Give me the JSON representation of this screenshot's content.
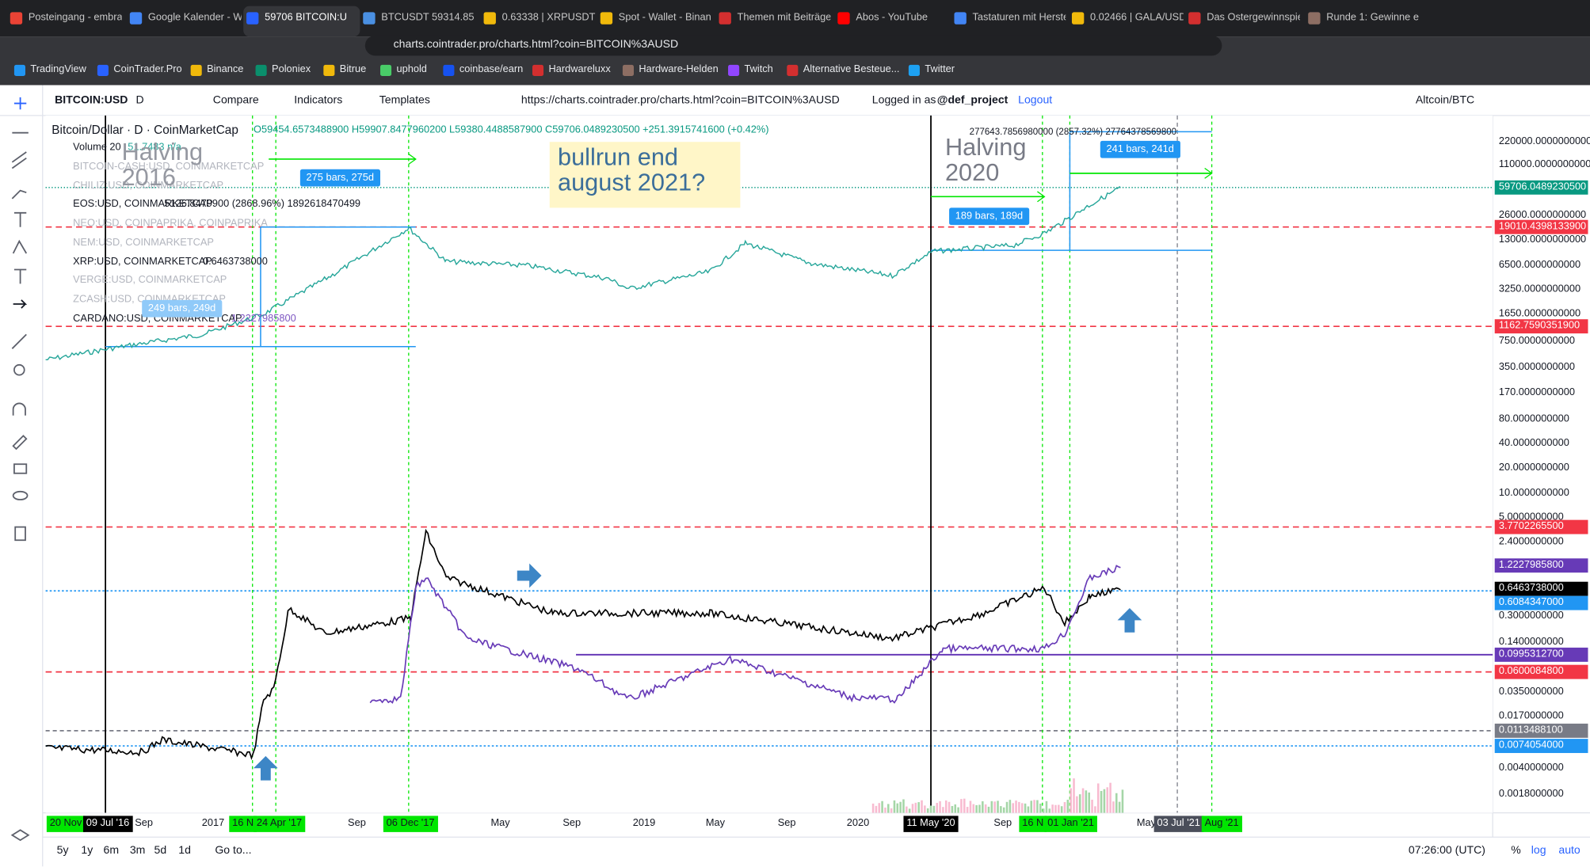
{
  "browser": {
    "tabs": [
      "Posteingang - embra",
      "Google Kalender - W",
      "59706 BITCOIN:U",
      "BTCUSDT 59314.85",
      "0.63338 | XRPUSDT |",
      "Spot - Wallet - Binan",
      "Themen mit Beiträge",
      "Abos - YouTube",
      "Tastaturen mit Herste",
      "0.02466 | GALA/USD",
      "Das Ostergewinnspie",
      "Runde 1: Gewinne e"
    ],
    "url": "charts.cointrader.pro/charts.html?coin=BITCOIN%3AUSD",
    "bookmarks": [
      "TradingView",
      "CoinTrader.Pro",
      "Binance",
      "Poloniex",
      "Bitrue",
      "uphold",
      "coinbase/earn",
      "Hardwareluxx",
      "Hardware-Helden",
      "Twitch",
      "Alternative Besteue...",
      "Twitter"
    ]
  },
  "toolbar": {
    "symbol": "BITCOIN:USD",
    "interval": "D",
    "compare": "Compare",
    "indicators": "Indicators",
    "templates": "Templates",
    "url": "https://charts.cointrader.pro/charts.html?coin=BITCOIN%3AUSD",
    "login": "Logged in as",
    "user": "@def_project",
    "logout": "Logout",
    "pair": "Altcoin/BTC"
  },
  "legend": {
    "title": "Bitcoin/Dollar · D · CoinMarketCap",
    "ohlc": "O59454.6573488900 H59907.8477960200 L59380.4488587900 C59706.0489230500 +251.3915741600 (+0.42%)",
    "volume": "Volume 20",
    "volume_value": "51.7483 n/a",
    "overlays": [
      {
        "name": "BITCOIN-CASH:USD, COINMARKETCAP"
      },
      {
        "name": "CHILIZ:USD, COINMARKETCAP"
      },
      {
        "name": "EOS:USD, COINMARKETCAP",
        "value": "5126.8479900 (2868.96%) 1892618470499"
      },
      {
        "name": "NEO:USD, COINPAPRIKA, COINPAPRIKA"
      },
      {
        "name": "NEM:USD, COINMARKETCAP"
      },
      {
        "name": "XRP:USD, COINMARKETCAP",
        "value": "0.6463738000"
      },
      {
        "name": "VERGE:USD, COINMARKETCAP"
      },
      {
        "name": "ZCASH:USD, COINMARKETCAP"
      },
      {
        "name": "CARDANO:USD, COINMARKETCAP",
        "value": "1.2227985800"
      }
    ]
  },
  "annotations": {
    "halving_2016": [
      "Halving",
      "2016"
    ],
    "halving_2020": [
      "Halving",
      "2020"
    ],
    "bullrun": [
      "bullrun end",
      "august 2021?"
    ],
    "bars_275": "275 bars, 275d",
    "bars_249": "249 bars, 249d",
    "bars_189": "189 bars, 189d",
    "bars_241": "241 bars, 241d",
    "measure": "277643.7856980000 (2857.32%) 27764378569800"
  },
  "price_axis": [
    "220000.0000000000",
    "110000.0000000000",
    "59706.0489230500",
    "26000.0000000000",
    "19010.4398133900",
    "13000.0000000000",
    "6500.0000000000",
    "3250.0000000000",
    "1650.0000000000",
    "1162.7590351900",
    "750.0000000000",
    "350.0000000000",
    "170.0000000000",
    "80.0000000000",
    "40.0000000000",
    "20.0000000000",
    "10.0000000000",
    "5.0000000000",
    "3.7702265500",
    "2.4000000000",
    "1.2227985800",
    "0.6463738000",
    "0.6084347000",
    "0.3000000000",
    "0.1400000000",
    "0.0995312700",
    "0.0600084800",
    "0.0350000000",
    "0.0170000000",
    "0.0113488100",
    "0.0074054000",
    "0.0040000000",
    "0.0018000000"
  ],
  "time_axis": [
    "20 Nov",
    "09 Jul '16",
    "Sep",
    "2017",
    "16 N",
    "24 Apr '17",
    "Sep",
    "06 Dec '17",
    "May",
    "Sep",
    "2019",
    "May",
    "Sep",
    "2020",
    "11 May '20",
    "Sep",
    "16 N",
    "01 Jan '21",
    "May",
    "03 Jul '21",
    "Aug '21"
  ],
  "bottom_bar": {
    "ranges": [
      "5y",
      "1y",
      "6m",
      "3m",
      "5d",
      "1d"
    ],
    "goto": "Go to...",
    "time": "07:26:00 (UTC)",
    "percent": "%",
    "log": "log",
    "auto": "auto"
  }
}
